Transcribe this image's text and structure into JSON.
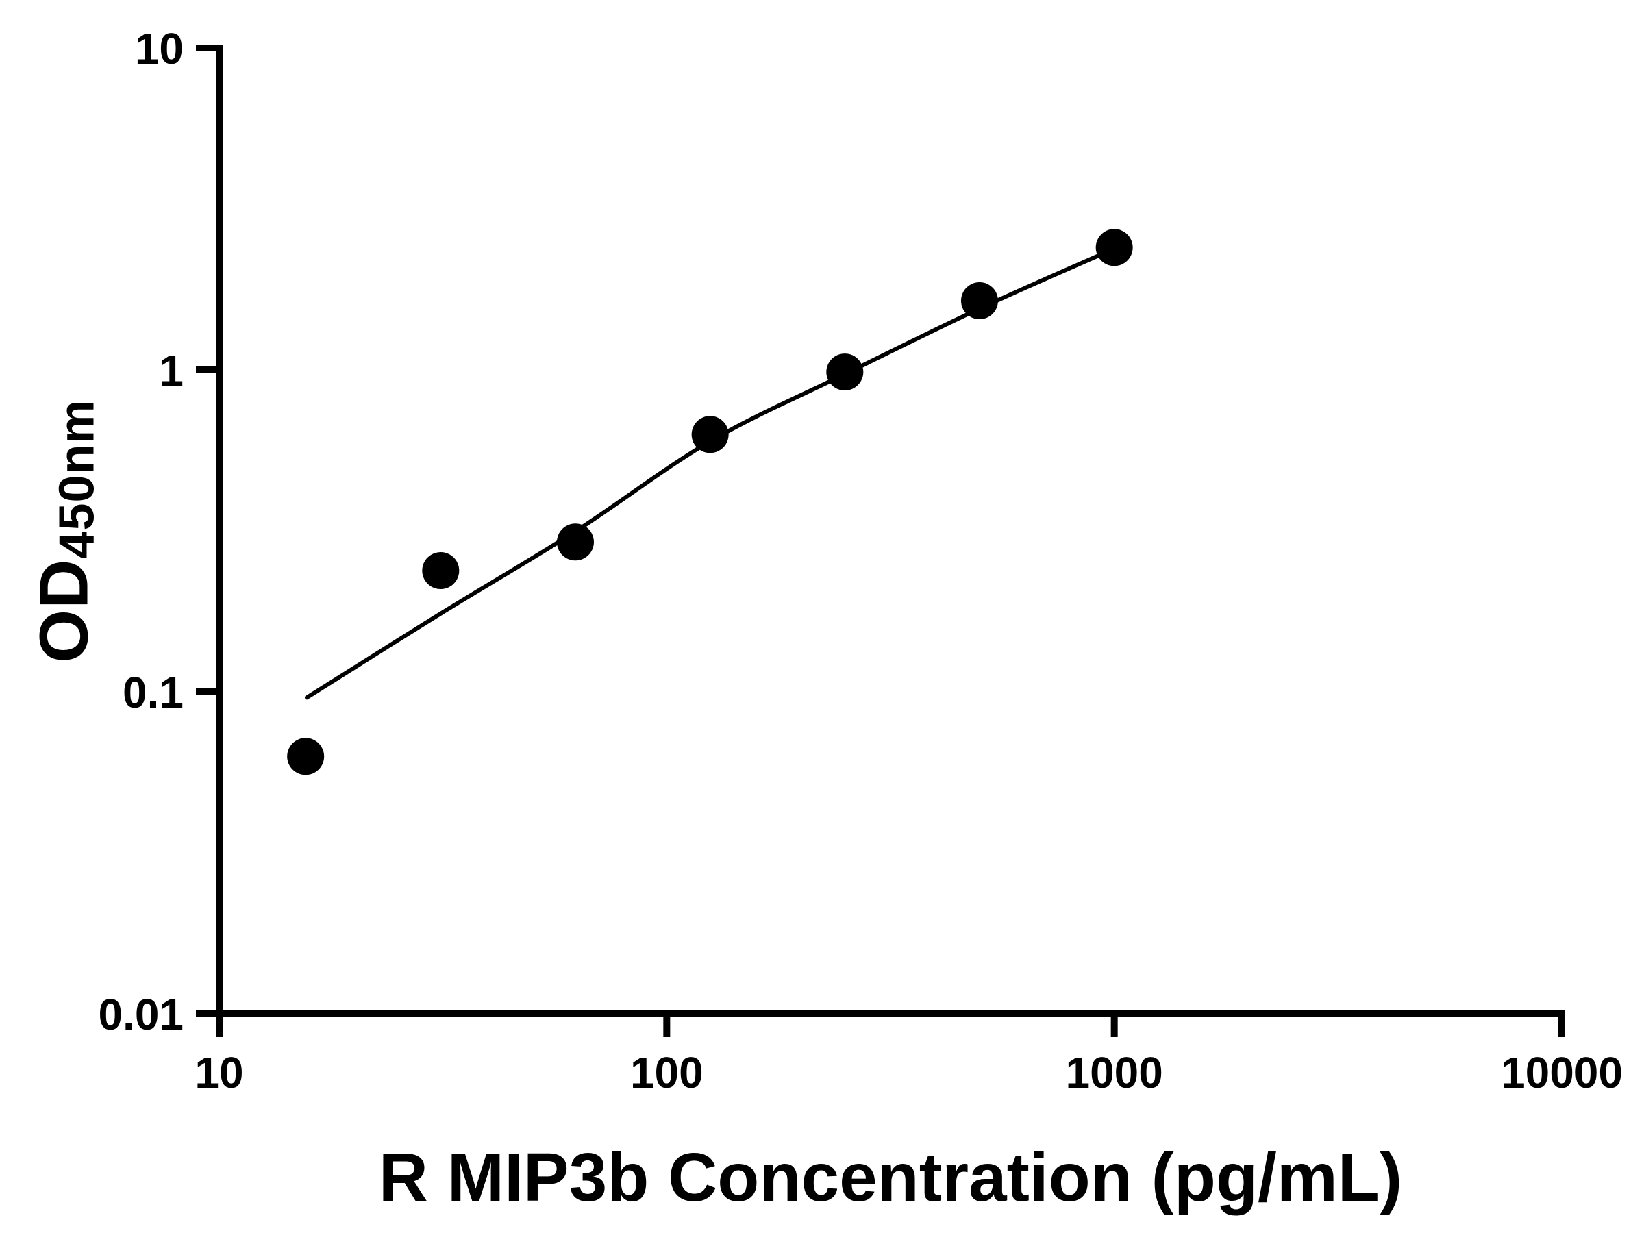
{
  "chart_data": {
    "type": "scatter",
    "xlabel": "R MIP3b Concentration (pg/mL)",
    "ylabel_main": "OD",
    "ylabel_sub": "450nm",
    "x_scale": "log",
    "y_scale": "log",
    "xlim": [
      10,
      10000
    ],
    "ylim": [
      0.01,
      10
    ],
    "x_ticks": [
      10,
      100,
      1000,
      10000
    ],
    "x_tick_labels": [
      "10",
      "100",
      "1000",
      "10000"
    ],
    "y_ticks": [
      0.01,
      0.1,
      1,
      10
    ],
    "y_tick_labels": [
      "0.01",
      "0.1",
      "1",
      "10"
    ],
    "grid": false,
    "legend": false,
    "series": [
      {
        "name": "standard-points",
        "x": [
          15.6,
          31.25,
          62.5,
          125,
          250,
          500,
          1000
        ],
        "y": [
          0.063,
          0.238,
          0.292,
          0.63,
          0.985,
          1.64,
          2.4
        ]
      }
    ],
    "fit_curve": {
      "name": "fitted-standard-curve",
      "x": [
        15.7,
        31.25,
        62.5,
        125,
        250,
        500,
        1000
      ],
      "y": [
        0.096,
        0.175,
        0.315,
        0.6,
        0.97,
        1.55,
        2.38
      ]
    },
    "colors": {
      "points": "#000000",
      "curve": "#000000",
      "axis": "#000000",
      "background": "#ffffff"
    },
    "marker_radius_px": 27,
    "axis_stroke_px": 10,
    "curve_stroke_px": 6
  }
}
